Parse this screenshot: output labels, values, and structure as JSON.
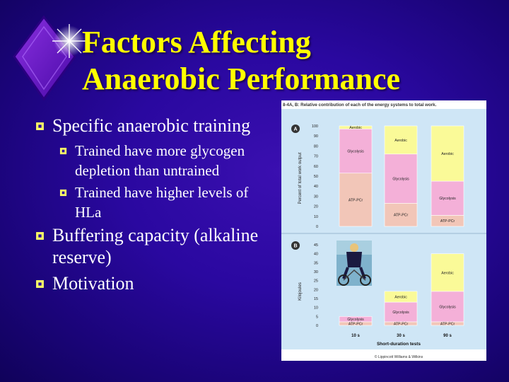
{
  "slide": {
    "title_line1": "Factors Affecting",
    "title_line2": "Anaerobic Performance",
    "bullets": [
      {
        "text": "Specific anaerobic training"
      },
      {
        "text": "Trained have more glycogen depletion than untrained"
      },
      {
        "text": "Trained have higher levels of HLa"
      },
      {
        "text": "Buffering capacity (alkaline reserve)"
      },
      {
        "text": "Motivation"
      }
    ],
    "colors": {
      "title": "#ffff00",
      "text": "#ffffff",
      "bullet": "#ffff66"
    }
  },
  "figure": {
    "caption": "8-4A, B: Relative contribution of each of the energy systems to total work.",
    "panel_a_letter": "A",
    "panel_b_letter": "B",
    "panel_a_ylabel": "Percent of total work output",
    "panel_b_ylabel": "Kilojoules",
    "xlabel": "Short-duration tests",
    "credit": "© Lippincott Williams & Wilkins"
  },
  "chart_data": [
    {
      "type": "bar",
      "stacked": true,
      "categories": [
        "10 s",
        "30 s",
        "90 s"
      ],
      "ylabel": "Percent of total work output",
      "ylim": [
        0,
        100
      ],
      "yticks": [
        0,
        10,
        20,
        30,
        40,
        50,
        60,
        70,
        80,
        90,
        100
      ],
      "series": [
        {
          "name": "ATP-PCr",
          "color": "#f2c6b8",
          "values": [
            53,
            23,
            11
          ]
        },
        {
          "name": "Glycolysis",
          "color": "#f4b0d8",
          "values": [
            44,
            49,
            34
          ]
        },
        {
          "name": "Aerobic",
          "color": "#fafa98",
          "values": [
            3,
            28,
            55
          ]
        }
      ]
    },
    {
      "type": "bar",
      "stacked": true,
      "categories": [
        "10 s",
        "30 s",
        "90 s"
      ],
      "ylabel": "Kilojoules",
      "ylim": [
        0,
        45
      ],
      "yticks": [
        0,
        5,
        10,
        15,
        20,
        25,
        30,
        35,
        40,
        45
      ],
      "series": [
        {
          "name": "ATP-PCr",
          "color": "#f2c6b8",
          "values": [
            2,
            2,
            2
          ]
        },
        {
          "name": "Glycolysis",
          "color": "#f4b0d8",
          "values": [
            3,
            11,
            17
          ]
        },
        {
          "name": "Aerobic",
          "color": "#fafa98",
          "values": [
            0,
            6,
            21
          ]
        }
      ]
    }
  ]
}
